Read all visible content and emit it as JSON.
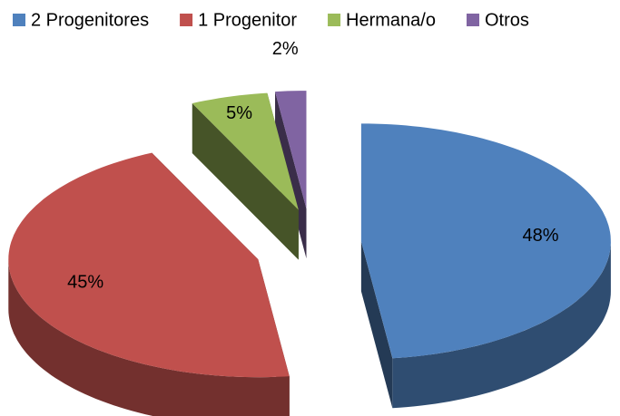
{
  "chart_data": {
    "type": "pie3d",
    "categories": [
      "2 Progenitores",
      "1 Progenitor",
      "Hermana/o",
      "Otros"
    ],
    "values": [
      48,
      45,
      5,
      2
    ],
    "value_labels": [
      "48%",
      "45%",
      "5%",
      "2%"
    ],
    "colors": [
      "#4f81bd",
      "#c0504d",
      "#9bbb59",
      "#8064a2"
    ],
    "legend": "top"
  }
}
